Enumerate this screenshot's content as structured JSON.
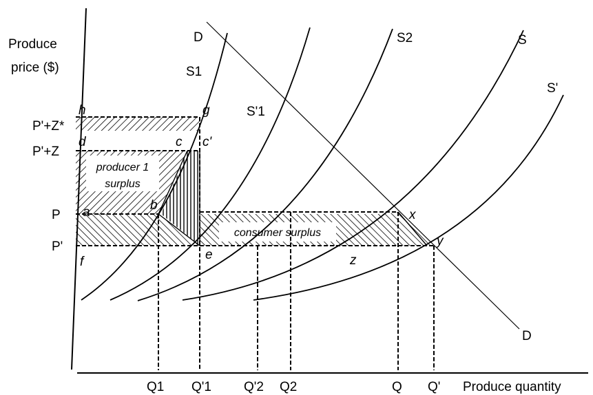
{
  "axes": {
    "y_label_line1": "Produce",
    "y_label_line2": "price ($)",
    "x_label": "Produce quantity"
  },
  "price_levels": [
    "P'+Z*",
    "P'+Z",
    "P",
    "P'"
  ],
  "quantity_levels": [
    "Q1",
    "Q'1",
    "Q'2",
    "Q2",
    "Q",
    "Q'"
  ],
  "curves": {
    "demand_top": "D",
    "demand_bottom": "D",
    "s1": "S1",
    "s1_prime": "S'1",
    "s2": "S2",
    "s": "S",
    "s_prime": "S'"
  },
  "points": {
    "h": "h",
    "g": "g",
    "d": "d",
    "c": "c",
    "c_prime": "c'",
    "a": "a",
    "b": "b",
    "f": "f",
    "e": "e",
    "x": "x",
    "y": "y",
    "z": "z"
  },
  "regions": {
    "producer_line1": "producer 1",
    "producer_line2": "surplus",
    "consumer": "consumer surplus"
  }
}
